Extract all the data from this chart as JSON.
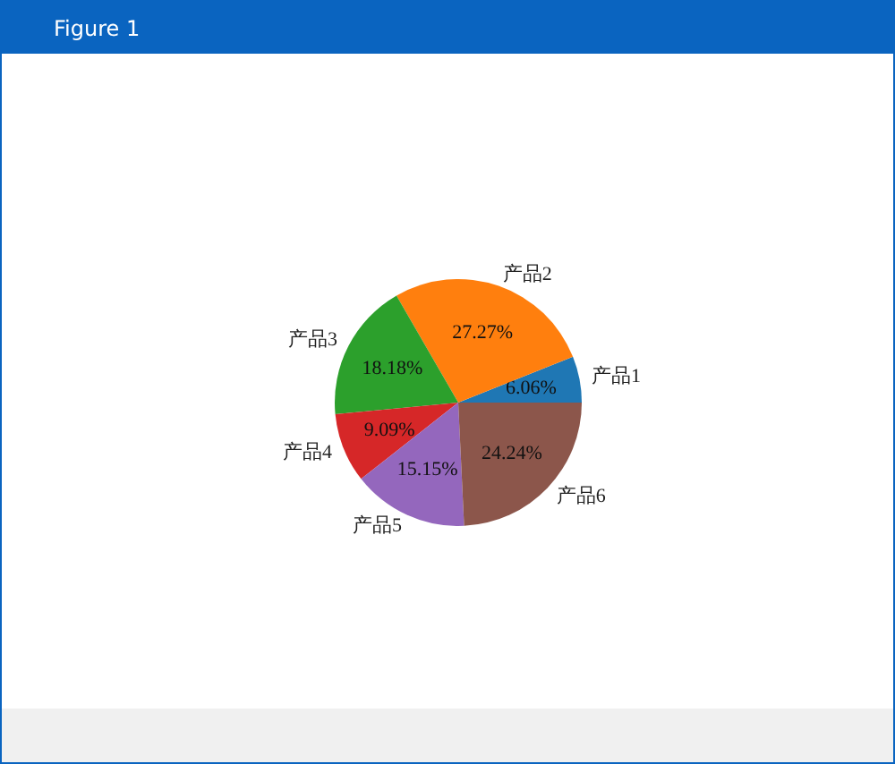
{
  "chart_data": {
    "type": "pie",
    "annotations": [
      "Figure 1"
    ],
    "categories": [
      "产品1",
      "产品2",
      "产品3",
      "产品4",
      "产品5",
      "产品6"
    ],
    "values": [
      6.06,
      27.27,
      18.18,
      9.09,
      15.15,
      24.24
    ],
    "colors": [
      "#1f77b4",
      "#ff7f0e",
      "#2ca02c",
      "#d62728",
      "#9467bd",
      "#8c564b"
    ],
    "value_labels": [
      "6.06%",
      "27.27%",
      "18.18%",
      "9.09%",
      "15.15%",
      "24.24%"
    ]
  }
}
